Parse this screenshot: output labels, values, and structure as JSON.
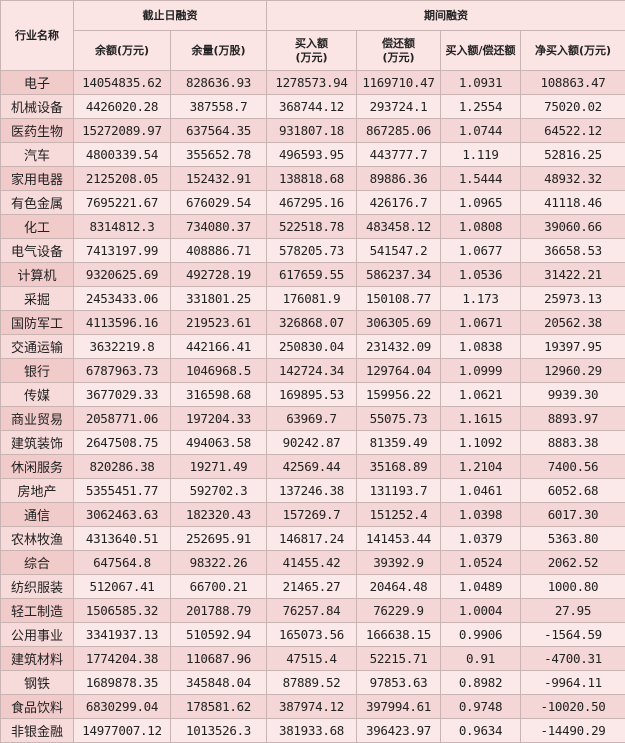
{
  "table": {
    "header": {
      "industry": "行业名称",
      "group1": "截止日融资",
      "group2": "期间融资",
      "columns": [
        "余额(万元)",
        "余量(万股)",
        "买入额\n(万元)",
        "偿还额\n(万元)",
        "买入额/偿还额",
        "净买入额(万元)"
      ]
    },
    "rows": [
      [
        "电子",
        "14054835.62",
        "828636.93",
        "1278573.94",
        "1169710.47",
        "1.0931",
        "108863.47"
      ],
      [
        "机械设备",
        "4426020.28",
        "387558.7",
        "368744.12",
        "293724.1",
        "1.2554",
        "75020.02"
      ],
      [
        "医药生物",
        "15272089.97",
        "637564.35",
        "931807.18",
        "867285.06",
        "1.0744",
        "64522.12"
      ],
      [
        "汽车",
        "4800339.54",
        "355652.78",
        "496593.95",
        "443777.7",
        "1.119",
        "52816.25"
      ],
      [
        "家用电器",
        "2125208.05",
        "152432.91",
        "138818.68",
        "89886.36",
        "1.5444",
        "48932.32"
      ],
      [
        "有色金属",
        "7695221.67",
        "676029.54",
        "467295.16",
        "426176.7",
        "1.0965",
        "41118.46"
      ],
      [
        "化工",
        "8314812.3",
        "734080.37",
        "522518.78",
        "483458.12",
        "1.0808",
        "39060.66"
      ],
      [
        "电气设备",
        "7413197.99",
        "408886.71",
        "578205.73",
        "541547.2",
        "1.0677",
        "36658.53"
      ],
      [
        "计算机",
        "9320625.69",
        "492728.19",
        "617659.55",
        "586237.34",
        "1.0536",
        "31422.21"
      ],
      [
        "采掘",
        "2453433.06",
        "331801.25",
        "176081.9",
        "150108.77",
        "1.173",
        "25973.13"
      ],
      [
        "国防军工",
        "4113596.16",
        "219523.61",
        "326868.07",
        "306305.69",
        "1.0671",
        "20562.38"
      ],
      [
        "交通运输",
        "3632219.8",
        "442166.41",
        "250830.04",
        "231432.09",
        "1.0838",
        "19397.95"
      ],
      [
        "银行",
        "6787963.73",
        "1046968.5",
        "142724.34",
        "129764.04",
        "1.0999",
        "12960.29"
      ],
      [
        "传媒",
        "3677029.33",
        "316598.68",
        "169895.53",
        "159956.22",
        "1.0621",
        "9939.30"
      ],
      [
        "商业贸易",
        "2058771.06",
        "197204.33",
        "63969.7",
        "55075.73",
        "1.1615",
        "8893.97"
      ],
      [
        "建筑装饰",
        "2647508.75",
        "494063.58",
        "90242.87",
        "81359.49",
        "1.1092",
        "8883.38"
      ],
      [
        "休闲服务",
        "820286.38",
        "19271.49",
        "42569.44",
        "35168.89",
        "1.2104",
        "7400.56"
      ],
      [
        "房地产",
        "5355451.77",
        "592702.3",
        "137246.38",
        "131193.7",
        "1.0461",
        "6052.68"
      ],
      [
        "通信",
        "3062463.63",
        "182320.43",
        "157269.7",
        "151252.4",
        "1.0398",
        "6017.30"
      ],
      [
        "农林牧渔",
        "4313640.51",
        "252695.91",
        "146817.24",
        "141453.44",
        "1.0379",
        "5363.80"
      ],
      [
        "综合",
        "647564.8",
        "98322.26",
        "41455.42",
        "39392.9",
        "1.0524",
        "2062.52"
      ],
      [
        "纺织服装",
        "512067.41",
        "66700.21",
        "21465.27",
        "20464.48",
        "1.0489",
        "1000.80"
      ],
      [
        "轻工制造",
        "1506585.32",
        "201788.79",
        "76257.84",
        "76229.9",
        "1.0004",
        "27.95"
      ],
      [
        "公用事业",
        "3341937.13",
        "510592.94",
        "165073.56",
        "166638.15",
        "0.9906",
        "-1564.59"
      ],
      [
        "建筑材料",
        "1774204.38",
        "110687.96",
        "47515.4",
        "52215.71",
        "0.91",
        "-4700.31"
      ],
      [
        "钢铁",
        "1689878.35",
        "345848.04",
        "87889.52",
        "97853.63",
        "0.8982",
        "-9964.11"
      ],
      [
        "食品饮料",
        "6830299.04",
        "178581.62",
        "387974.12",
        "397994.61",
        "0.9748",
        "-10020.50"
      ],
      [
        "非银金融",
        "14977007.12",
        "1013526.3",
        "381933.68",
        "396423.97",
        "0.9634",
        "-14490.29"
      ]
    ]
  }
}
